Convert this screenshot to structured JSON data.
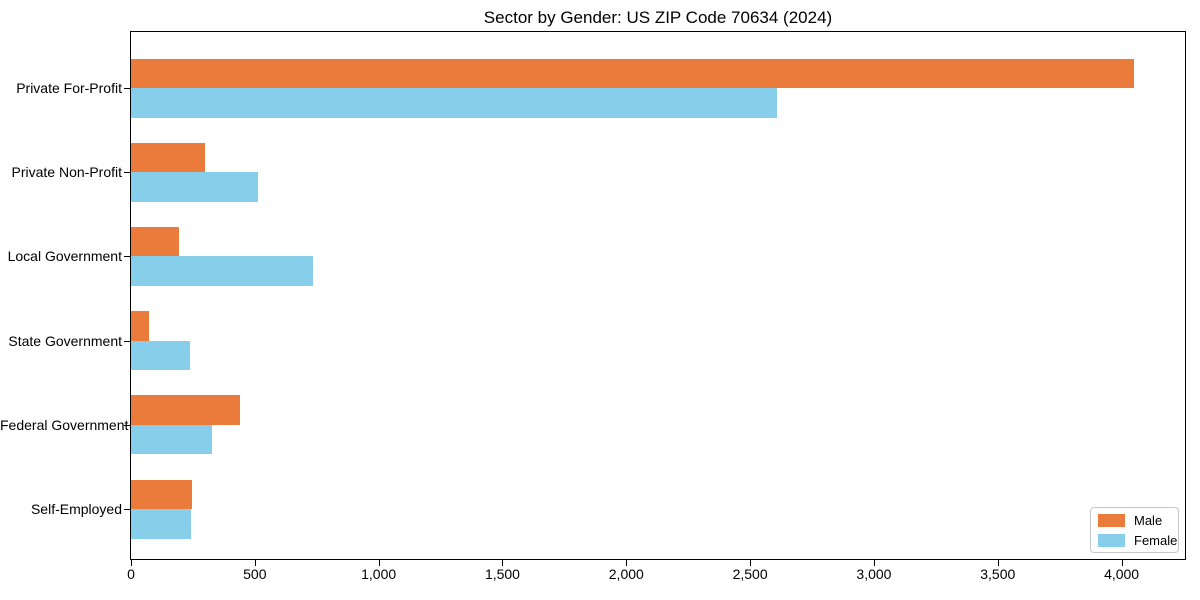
{
  "title": "Sector by Gender: US ZIP Code 70634 (2024)",
  "chart_data": {
    "type": "bar",
    "orientation": "horizontal",
    "title": "Sector by Gender: US ZIP Code 70634 (2024)",
    "xlabel": "",
    "ylabel": "",
    "categories": [
      "Private For-Profit",
      "Private Non-Profit",
      "Local Government",
      "State Government",
      "Federal Government",
      "Self-Employed"
    ],
    "series": [
      {
        "name": "Male",
        "color": "#EB7B3A",
        "values": [
          4052,
          300,
          195,
          74,
          441,
          248
        ]
      },
      {
        "name": "Female",
        "color": "#87CEEB",
        "values": [
          2609,
          513,
          734,
          239,
          327,
          242
        ]
      }
    ],
    "xlim": [
      0,
      4256
    ],
    "x_ticks": [
      0,
      500,
      1000,
      1500,
      2000,
      2500,
      3000,
      3500,
      4000
    ],
    "x_tick_labels": [
      "0",
      "500",
      "1,000",
      "1,500",
      "2,000",
      "2,500",
      "3,000",
      "3,500",
      "4,000"
    ],
    "grid": false,
    "legend_position": "lower right",
    "axis_color": "#000000",
    "legend_border_color": "#c7c7c7",
    "background_color": "#ffffff"
  }
}
